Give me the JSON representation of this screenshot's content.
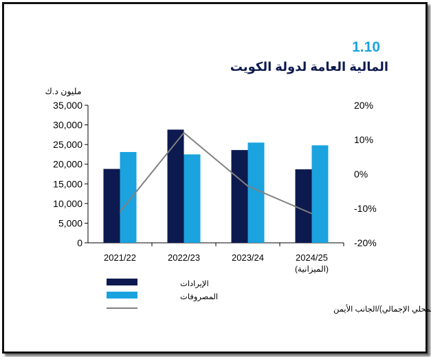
{
  "header": {
    "figure_number": "1.10",
    "title": "المالية العامة لدولة الكويت"
  },
  "chart_data": {
    "type": "bar",
    "categories": [
      "2021/22",
      "2022/23",
      "2023/24",
      "2024/25"
    ],
    "category_notes": [
      "",
      "",
      "",
      "(الميزانية)"
    ],
    "y_unit": "مليون د.ك",
    "ylim": [
      0,
      35000
    ],
    "y_ticks": [
      "0",
      "5,000",
      "10,000",
      "15,000",
      "20,000",
      "25,000",
      "30,000",
      "35,000"
    ],
    "y2lim": [
      -20,
      20
    ],
    "y2_ticks": [
      "-20%",
      "-10%",
      "0%",
      "10%",
      "20%"
    ],
    "grid": false,
    "legend_position": "bottom",
    "series": [
      {
        "name": "الإيرادات",
        "kind": "bar",
        "axis": "left",
        "color": "#0d1a4f",
        "values": [
          18800,
          28800,
          23600,
          18700
        ]
      },
      {
        "name": "المصروفات",
        "kind": "bar",
        "axis": "left",
        "color": "#1aa3df",
        "values": [
          23100,
          22500,
          25500,
          24800
        ]
      },
      {
        "name": "العجز المالي (% من الناتج المحلي الإجمالي)/الجانب الأيمن",
        "kind": "line",
        "axis": "right",
        "color": "#808080",
        "values": [
          -11,
          12,
          -3.5,
          -11.5
        ]
      }
    ]
  }
}
